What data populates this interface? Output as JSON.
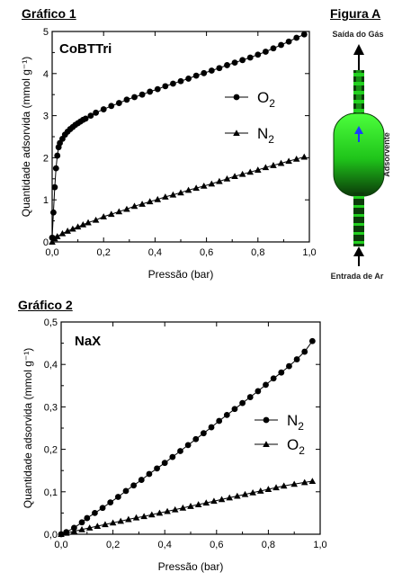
{
  "chart_data": [
    {
      "heading": "Gráfico 1",
      "type": "line",
      "title": "CoBTTri",
      "xlabel": "Pressão (bar)",
      "ylabel": "Quantidade adsorvida (mmol g⁻¹)",
      "xlim": [
        0,
        1.0
      ],
      "ylim": [
        0,
        5
      ],
      "xticks": [
        "0,0",
        "0,2",
        "0,4",
        "0,6",
        "0,8",
        "1,0"
      ],
      "yticks": [
        "0",
        "1",
        "2",
        "3",
        "4",
        "5"
      ],
      "legend_position": "right",
      "series": [
        {
          "name": "O2",
          "label_main": "O",
          "label_sub": "2",
          "marker": "circle",
          "x": [
            0.0,
            0.005,
            0.01,
            0.015,
            0.02,
            0.025,
            0.03,
            0.04,
            0.05,
            0.06,
            0.07,
            0.08,
            0.09,
            0.1,
            0.11,
            0.12,
            0.13,
            0.15,
            0.17,
            0.2,
            0.23,
            0.26,
            0.29,
            0.32,
            0.35,
            0.38,
            0.41,
            0.44,
            0.47,
            0.5,
            0.53,
            0.56,
            0.59,
            0.62,
            0.65,
            0.68,
            0.71,
            0.74,
            0.77,
            0.8,
            0.83,
            0.86,
            0.89,
            0.92,
            0.95,
            0.98
          ],
          "y": [
            0.1,
            0.7,
            1.3,
            1.75,
            2.05,
            2.25,
            2.35,
            2.45,
            2.55,
            2.62,
            2.68,
            2.73,
            2.78,
            2.82,
            2.86,
            2.9,
            2.93,
            3.0,
            3.07,
            3.15,
            3.23,
            3.3,
            3.38,
            3.44,
            3.5,
            3.57,
            3.63,
            3.7,
            3.76,
            3.82,
            3.88,
            3.95,
            4.01,
            4.07,
            4.13,
            4.2,
            4.26,
            4.32,
            4.38,
            4.45,
            4.52,
            4.6,
            4.68,
            4.76,
            4.85,
            4.93
          ]
        },
        {
          "name": "N2",
          "label_main": "N",
          "label_sub": "2",
          "marker": "triangle",
          "x": [
            0.0,
            0.01,
            0.02,
            0.04,
            0.06,
            0.08,
            0.1,
            0.12,
            0.14,
            0.17,
            0.2,
            0.23,
            0.26,
            0.29,
            0.32,
            0.35,
            0.38,
            0.41,
            0.44,
            0.47,
            0.5,
            0.53,
            0.56,
            0.59,
            0.62,
            0.65,
            0.68,
            0.71,
            0.74,
            0.77,
            0.8,
            0.83,
            0.86,
            0.89,
            0.92,
            0.95,
            0.98
          ],
          "y": [
            0.0,
            0.08,
            0.13,
            0.2,
            0.26,
            0.31,
            0.36,
            0.41,
            0.46,
            0.52,
            0.6,
            0.66,
            0.72,
            0.78,
            0.85,
            0.9,
            0.96,
            1.01,
            1.07,
            1.12,
            1.17,
            1.23,
            1.28,
            1.33,
            1.38,
            1.44,
            1.5,
            1.56,
            1.61,
            1.66,
            1.71,
            1.77,
            1.82,
            1.87,
            1.92,
            1.97,
            2.02
          ]
        }
      ]
    },
    {
      "heading": "Gráfico 2",
      "type": "line",
      "title": "NaX",
      "xlabel": "Pressão (bar)",
      "ylabel": "Quantidade adsorvida (mmol g⁻¹)",
      "xlim": [
        0,
        1.0
      ],
      "ylim": [
        0,
        0.5
      ],
      "xticks": [
        "0,0",
        "0,2",
        "0,4",
        "0,6",
        "0,8",
        "1,0"
      ],
      "yticks": [
        "0,0",
        "0,1",
        "0,2",
        "0,3",
        "0,4",
        "0,5"
      ],
      "legend_position": "right",
      "series": [
        {
          "name": "N2",
          "label_main": "N",
          "label_sub": "2",
          "marker": "circle",
          "x": [
            0.0,
            0.02,
            0.05,
            0.08,
            0.1,
            0.13,
            0.16,
            0.19,
            0.22,
            0.25,
            0.28,
            0.31,
            0.34,
            0.37,
            0.4,
            0.43,
            0.46,
            0.49,
            0.52,
            0.55,
            0.58,
            0.61,
            0.64,
            0.67,
            0.7,
            0.73,
            0.76,
            0.79,
            0.82,
            0.85,
            0.88,
            0.91,
            0.94,
            0.97
          ],
          "y": [
            0.0,
            0.005,
            0.015,
            0.028,
            0.038,
            0.05,
            0.062,
            0.075,
            0.088,
            0.102,
            0.115,
            0.128,
            0.142,
            0.155,
            0.168,
            0.182,
            0.196,
            0.21,
            0.224,
            0.238,
            0.252,
            0.267,
            0.281,
            0.295,
            0.309,
            0.323,
            0.337,
            0.352,
            0.367,
            0.381,
            0.396,
            0.412,
            0.43,
            0.455
          ]
        },
        {
          "name": "O2",
          "label_main": "O",
          "label_sub": "2",
          "marker": "triangle",
          "x": [
            0.0,
            0.02,
            0.05,
            0.08,
            0.11,
            0.14,
            0.17,
            0.2,
            0.23,
            0.26,
            0.29,
            0.32,
            0.35,
            0.38,
            0.41,
            0.44,
            0.47,
            0.5,
            0.53,
            0.56,
            0.59,
            0.62,
            0.65,
            0.68,
            0.71,
            0.74,
            0.77,
            0.8,
            0.83,
            0.86,
            0.9,
            0.94,
            0.97
          ],
          "y": [
            0.0,
            0.003,
            0.007,
            0.011,
            0.015,
            0.019,
            0.023,
            0.027,
            0.031,
            0.035,
            0.039,
            0.042,
            0.046,
            0.05,
            0.054,
            0.058,
            0.062,
            0.066,
            0.07,
            0.074,
            0.078,
            0.082,
            0.086,
            0.09,
            0.094,
            0.098,
            0.102,
            0.106,
            0.11,
            0.114,
            0.118,
            0.122,
            0.125
          ]
        }
      ]
    }
  ],
  "figure_a": {
    "heading": "Figura A",
    "top_label": "Saída do Gás",
    "bottom_label": "Entrada de Ar",
    "side_label": "Adsorvente",
    "colors": {
      "green": "#22d11f",
      "dark": "#0d3b0b",
      "arrow": "#1a3cff"
    }
  }
}
